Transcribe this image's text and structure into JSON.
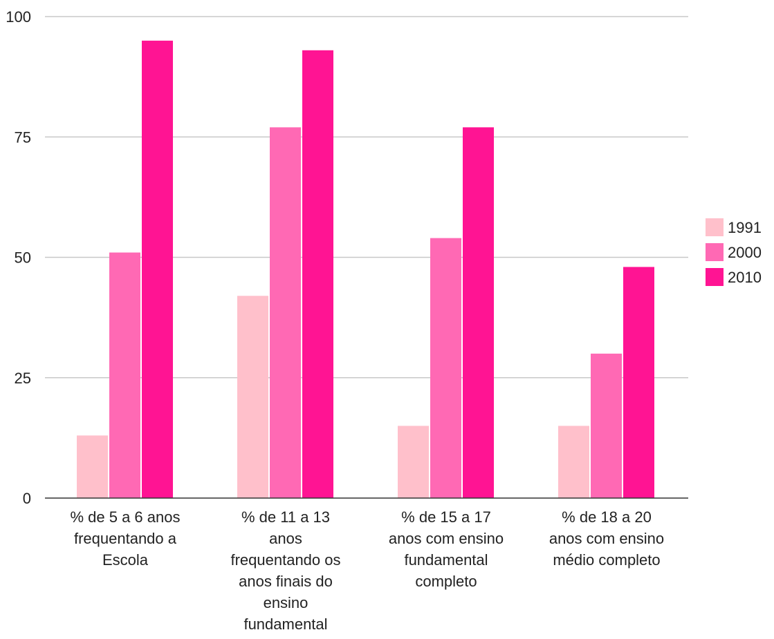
{
  "chart_data": {
    "type": "bar",
    "title": "",
    "xlabel": "",
    "ylabel": "",
    "ylim": [
      0,
      100
    ],
    "yticks": [
      "0",
      "25",
      "50",
      "75",
      "100"
    ],
    "grid": true,
    "legend_position": "right",
    "categories": [
      [
        "% de 5 a 6 anos",
        "frequentando a",
        "Escola"
      ],
      [
        "% de 11 a 13",
        "anos",
        "frequentando os",
        "anos finais do",
        "ensino",
        "fundamental"
      ],
      [
        "% de 15 a 17",
        "anos com ensino",
        "fundamental",
        "completo"
      ],
      [
        "% de 18 a 20",
        "anos com ensino",
        "médio completo"
      ]
    ],
    "series": [
      {
        "name": "1991",
        "color": "#ffc0cb",
        "values": [
          13,
          42,
          15,
          15
        ]
      },
      {
        "name": "2000",
        "color": "#ff69b4",
        "values": [
          51,
          77,
          54,
          30
        ]
      },
      {
        "name": "2010",
        "color": "#ff1493",
        "values": [
          95,
          93,
          77,
          48
        ]
      }
    ]
  }
}
